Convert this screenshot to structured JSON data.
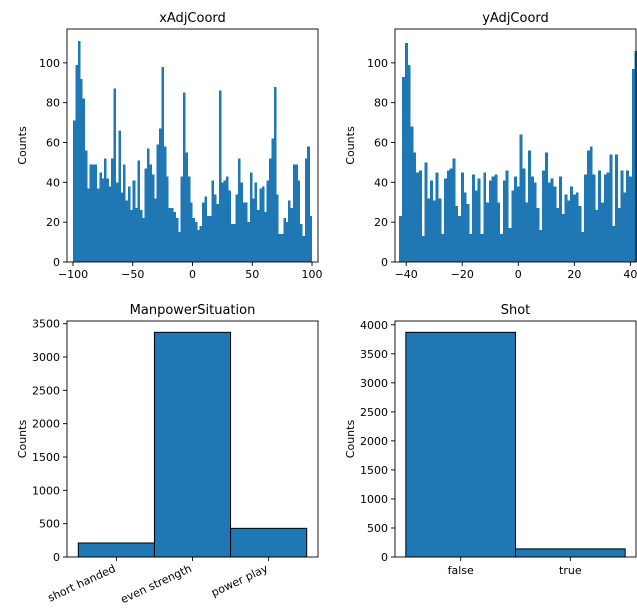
{
  "chart_data": [
    {
      "type": "bar",
      "subtype": "histogram",
      "title": "xAdjCoord",
      "xlabel": "",
      "ylabel": "Counts",
      "xlim": [
        -105,
        105
      ],
      "ylim": [
        0,
        117
      ],
      "xticks": [
        -100,
        -50,
        0,
        50,
        100
      ],
      "yticks": [
        0,
        20,
        40,
        60,
        80,
        100
      ],
      "bar_color": "#1f77b4",
      "bin_range": [
        -100,
        100
      ],
      "values": [
        71,
        99,
        111,
        92,
        82,
        56,
        37,
        49,
        49,
        49,
        37,
        45,
        42,
        52,
        42,
        38,
        52,
        87,
        40,
        66,
        35,
        49,
        31,
        38,
        26,
        41,
        27,
        51,
        26,
        22,
        47,
        57,
        49,
        44,
        32,
        59,
        67,
        98,
        58,
        43,
        27,
        27,
        25,
        22,
        15,
        43,
        85,
        55,
        43,
        30,
        22,
        20,
        16,
        18,
        30,
        33,
        23,
        23,
        41,
        34,
        29,
        86,
        40,
        41,
        43,
        36,
        19,
        19,
        34,
        52,
        40,
        30,
        30,
        20,
        45,
        32,
        40,
        26,
        37,
        38,
        25,
        41,
        52,
        62,
        88,
        34,
        14,
        14,
        22,
        20,
        31,
        27,
        49,
        49,
        41,
        19,
        13,
        52,
        58,
        23
      ]
    },
    {
      "type": "bar",
      "subtype": "histogram",
      "title": "yAdjCoord",
      "xlabel": "",
      "ylabel": "Counts",
      "xlim": [
        -44,
        42
      ],
      "ylim": [
        0,
        117
      ],
      "xticks": [
        -40,
        -20,
        0,
        20,
        40
      ],
      "yticks": [
        0,
        20,
        40,
        60,
        80,
        100
      ],
      "bar_color": "#1f77b4",
      "bin_range": [
        -42.5,
        42.5
      ],
      "values": [
        23,
        93,
        110,
        99,
        68,
        55,
        45,
        46,
        13,
        50,
        32,
        41,
        31,
        45,
        32,
        14,
        42,
        46,
        47,
        52,
        28,
        23,
        45,
        35,
        29,
        14,
        44,
        36,
        42,
        14,
        45,
        30,
        41,
        43,
        44,
        30,
        14,
        41,
        46,
        17,
        36,
        43,
        38,
        64,
        47,
        30,
        56,
        43,
        40,
        27,
        16,
        46,
        55,
        40,
        42,
        38,
        27,
        43,
        24,
        34,
        31,
        38,
        34,
        35,
        28,
        15,
        44,
        56,
        58,
        44,
        26,
        46,
        30,
        44,
        45,
        54,
        18,
        54,
        27,
        46,
        35,
        46,
        43,
        97,
        106
      ]
    },
    {
      "type": "bar",
      "title": "ManpowerSituation",
      "xlabel": "",
      "ylabel": "Counts",
      "categories": [
        "short handed",
        "even strength",
        "power play"
      ],
      "values": [
        210,
        3370,
        430
      ],
      "ylim": [
        0,
        3540
      ],
      "yticks": [
        0,
        500,
        1000,
        1500,
        2000,
        2500,
        3000,
        3500
      ],
      "bar_color": "#1f77b4",
      "edge_color": "#000000",
      "rotated_tick_labels": true
    },
    {
      "type": "bar",
      "title": "Shot",
      "xlabel": "",
      "ylabel": "Counts",
      "categories": [
        "false",
        "true"
      ],
      "values": [
        3870,
        140
      ],
      "ylim": [
        0,
        4065
      ],
      "yticks": [
        0,
        500,
        1000,
        1500,
        2000,
        2500,
        3000,
        3500,
        4000
      ],
      "bar_color": "#1f77b4",
      "edge_color": "#000000",
      "rotated_tick_labels": false
    }
  ]
}
